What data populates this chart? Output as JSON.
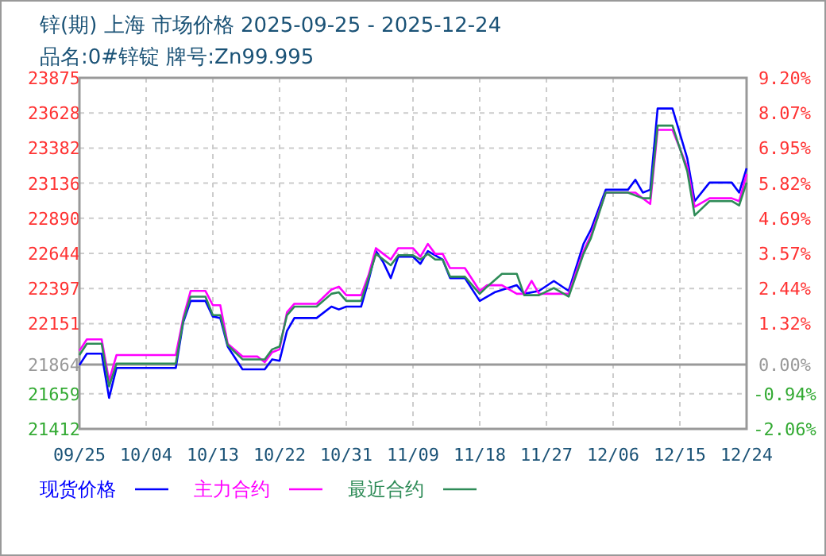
{
  "chart_data": {
    "type": "line",
    "title": "锌(期) 上海 市场价格 2025-09-25 - 2025-12-24",
    "subtitle": "品名:0#锌锭 牌号:Zn99.995",
    "xlim": [
      "2025-09-25",
      "2025-12-24"
    ],
    "xticks": [
      {
        "value": "2025-09-25",
        "label": "09/25"
      },
      {
        "value": "2025-10-04",
        "label": "10/04"
      },
      {
        "value": "2025-10-13",
        "label": "10/13"
      },
      {
        "value": "2025-10-22",
        "label": "10/22"
      },
      {
        "value": "2025-10-31",
        "label": "10/31"
      },
      {
        "value": "2025-11-09",
        "label": "11/09"
      },
      {
        "value": "2025-11-18",
        "label": "11/18"
      },
      {
        "value": "2025-11-27",
        "label": "11/27"
      },
      {
        "value": "2025-12-06",
        "label": "12/06"
      },
      {
        "value": "2025-12-15",
        "label": "12/15"
      },
      {
        "value": "2025-12-24",
        "label": "12/24"
      }
    ],
    "ylim": [
      21412,
      23875
    ],
    "yticks": [
      21412,
      21659,
      21864,
      22151,
      22397,
      22644,
      22890,
      23136,
      23382,
      23628,
      23875
    ],
    "y2lim": [
      -2.06,
      9.2
    ],
    "y2ticks": [
      {
        "value": -2.06,
        "label": "-2.06%"
      },
      {
        "value": -0.94,
        "label": "-0.94%"
      },
      {
        "value": 0,
        "label": "0.00%"
      },
      {
        "value": 1.32,
        "label": "1.32%"
      },
      {
        "value": 2.44,
        "label": "2.44%"
      },
      {
        "value": 3.57,
        "label": "3.57%"
      },
      {
        "value": 4.69,
        "label": "4.69%"
      },
      {
        "value": 5.82,
        "label": "5.82%"
      },
      {
        "value": 6.95,
        "label": "6.95%"
      },
      {
        "value": 8.07,
        "label": "8.07%"
      },
      {
        "value": 9.2,
        "label": "9.20%"
      }
    ],
    "ref_lines": [
      {
        "axis": "y",
        "value": 21864,
        "color": "#999999"
      }
    ],
    "grid": true,
    "legend": "bottom",
    "marker": "none",
    "line_style": "solid",
    "series": [
      {
        "name": "现货价格",
        "color": "#0000ff",
        "x": [
          "2025-09-25",
          "2025-09-26",
          "2025-09-28",
          "2025-09-29",
          "2025-09-30",
          "2025-10-08",
          "2025-10-09",
          "2025-10-10",
          "2025-10-12",
          "2025-10-13",
          "2025-10-14",
          "2025-10-15",
          "2025-10-17",
          "2025-10-20",
          "2025-10-21",
          "2025-10-22",
          "2025-10-23",
          "2025-10-24",
          "2025-10-27",
          "2025-10-29",
          "2025-10-30",
          "2025-10-31",
          "2025-11-02",
          "2025-11-03",
          "2025-11-04",
          "2025-11-05",
          "2025-11-06",
          "2025-11-07",
          "2025-11-09",
          "2025-11-10",
          "2025-11-11",
          "2025-11-13",
          "2025-11-14",
          "2025-11-16",
          "2025-11-18",
          "2025-11-20",
          "2025-11-23",
          "2025-11-24",
          "2025-11-26",
          "2025-11-28",
          "2025-11-30",
          "2025-12-02",
          "2025-12-03",
          "2025-12-05",
          "2025-12-08",
          "2025-12-09",
          "2025-12-10",
          "2025-12-11",
          "2025-12-12",
          "2025-12-14",
          "2025-12-16",
          "2025-12-17",
          "2025-12-19",
          "2025-12-22",
          "2025-12-23",
          "2025-12-24"
        ],
        "values": [
          21860,
          21940,
          21940,
          21630,
          21840,
          21840,
          22160,
          22310,
          22310,
          22200,
          22190,
          21990,
          21830,
          21830,
          21900,
          21890,
          22100,
          22190,
          22190,
          22270,
          22250,
          22270,
          22270,
          22450,
          22660,
          22580,
          22470,
          22620,
          22620,
          22570,
          22660,
          22600,
          22470,
          22470,
          22310,
          22370,
          22420,
          22360,
          22380,
          22450,
          22380,
          22710,
          22810,
          23090,
          23090,
          23160,
          23070,
          23090,
          23660,
          23660,
          23310,
          23010,
          23140,
          23140,
          23070,
          23240
        ]
      },
      {
        "name": "主力合约",
        "color": "#ff00ff",
        "x": [
          "2025-09-25",
          "2025-09-26",
          "2025-09-28",
          "2025-09-29",
          "2025-09-30",
          "2025-10-08",
          "2025-10-09",
          "2025-10-10",
          "2025-10-12",
          "2025-10-13",
          "2025-10-14",
          "2025-10-15",
          "2025-10-17",
          "2025-10-19",
          "2025-10-20",
          "2025-10-21",
          "2025-10-22",
          "2025-10-23",
          "2025-10-24",
          "2025-10-27",
          "2025-10-29",
          "2025-10-30",
          "2025-10-31",
          "2025-11-02",
          "2025-11-03",
          "2025-11-04",
          "2025-11-05",
          "2025-11-06",
          "2025-11-07",
          "2025-11-09",
          "2025-11-10",
          "2025-11-11",
          "2025-11-12",
          "2025-11-13",
          "2025-11-14",
          "2025-11-16",
          "2025-11-18",
          "2025-11-19",
          "2025-11-21",
          "2025-11-23",
          "2025-11-24",
          "2025-11-25",
          "2025-11-26",
          "2025-11-30",
          "2025-12-02",
          "2025-12-03",
          "2025-12-05",
          "2025-12-09",
          "2025-12-11",
          "2025-12-12",
          "2025-12-14",
          "2025-12-16",
          "2025-12-17",
          "2025-12-19",
          "2025-12-22",
          "2025-12-23",
          "2025-12-24"
        ],
        "values": [
          21960,
          22040,
          22040,
          21750,
          21930,
          21930,
          22190,
          22380,
          22380,
          22280,
          22280,
          22010,
          21920,
          21920,
          21880,
          21950,
          21970,
          22230,
          22290,
          22290,
          22390,
          22410,
          22350,
          22350,
          22490,
          22680,
          22640,
          22600,
          22680,
          22680,
          22620,
          22710,
          22640,
          22640,
          22540,
          22540,
          22380,
          22420,
          22420,
          22360,
          22360,
          22450,
          22360,
          22360,
          22660,
          22770,
          23070,
          23070,
          22990,
          23510,
          23510,
          23250,
          22970,
          23030,
          23030,
          23010,
          23200
        ]
      },
      {
        "name": "最近合约",
        "color": "#2e8b57",
        "x": [
          "2025-09-25",
          "2025-09-26",
          "2025-09-28",
          "2025-09-29",
          "2025-09-30",
          "2025-10-08",
          "2025-10-09",
          "2025-10-10",
          "2025-10-12",
          "2025-10-13",
          "2025-10-14",
          "2025-10-15",
          "2025-10-17",
          "2025-10-20",
          "2025-10-21",
          "2025-10-22",
          "2025-10-23",
          "2025-10-24",
          "2025-10-27",
          "2025-10-29",
          "2025-10-30",
          "2025-10-31",
          "2025-11-02",
          "2025-11-03",
          "2025-11-04",
          "2025-11-05",
          "2025-11-06",
          "2025-11-07",
          "2025-11-09",
          "2025-11-10",
          "2025-11-11",
          "2025-11-12",
          "2025-11-13",
          "2025-11-14",
          "2025-11-16",
          "2025-11-18",
          "2025-11-19",
          "2025-11-21",
          "2025-11-23",
          "2025-11-24",
          "2025-11-26",
          "2025-11-28",
          "2025-11-30",
          "2025-12-02",
          "2025-12-03",
          "2025-12-05",
          "2025-12-08",
          "2025-12-10",
          "2025-12-11",
          "2025-12-12",
          "2025-12-14",
          "2025-12-16",
          "2025-12-17",
          "2025-12-19",
          "2025-12-22",
          "2025-12-23",
          "2025-12-24"
        ],
        "values": [
          21930,
          22010,
          22010,
          21710,
          21870,
          21870,
          22170,
          22340,
          22340,
          22210,
          22210,
          22000,
          21900,
          21900,
          21970,
          21990,
          22210,
          22270,
          22270,
          22360,
          22370,
          22310,
          22310,
          22470,
          22640,
          22600,
          22560,
          22630,
          22630,
          22600,
          22640,
          22600,
          22600,
          22480,
          22480,
          22360,
          22410,
          22500,
          22500,
          22350,
          22350,
          22400,
          22340,
          22640,
          22750,
          23070,
          23070,
          23030,
          23030,
          23540,
          23540,
          23220,
          22910,
          23010,
          23010,
          22980,
          23140
        ]
      }
    ]
  }
}
